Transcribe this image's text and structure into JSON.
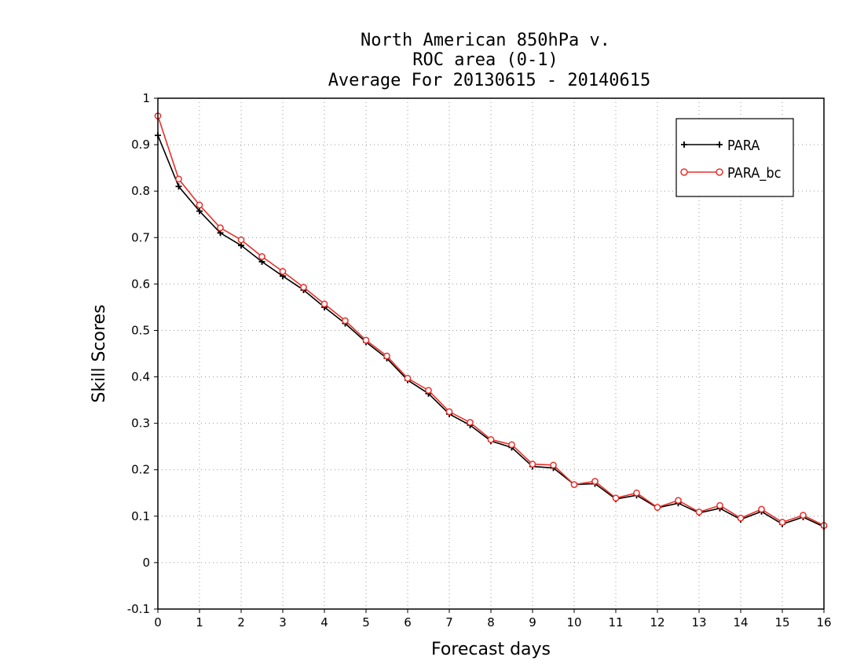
{
  "chart_data": {
    "type": "line",
    "title_lines": [
      "North American 850hPa v.",
      "ROC area (0-1)",
      "Average For 20130615 - 20140615"
    ],
    "xlabel": "Forecast days",
    "ylabel": "Skill Scores",
    "xlim": [
      0,
      16
    ],
    "ylim": [
      -0.1,
      1
    ],
    "x_ticks": [
      0,
      1,
      2,
      3,
      4,
      5,
      6,
      7,
      8,
      9,
      10,
      11,
      12,
      13,
      14,
      15,
      16
    ],
    "y_ticks": [
      -0.1,
      0,
      0.1,
      0.2,
      0.3,
      0.4,
      0.5,
      0.6,
      0.7,
      0.8,
      0.9,
      1
    ],
    "y_tick_labels": [
      "-0.1",
      "0",
      "0.1",
      "0.2",
      "0.3",
      "0.4",
      "0.5",
      "0.6",
      "0.7",
      "0.8",
      "0.9",
      "1"
    ],
    "grid": true,
    "legend_position": "top-right",
    "x": [
      0,
      0.5,
      1,
      1.5,
      2,
      2.5,
      3,
      3.5,
      4,
      4.5,
      5,
      5.5,
      6,
      6.5,
      7,
      7.5,
      8,
      8.5,
      9,
      9.5,
      10,
      10.5,
      11,
      11.5,
      12,
      12.5,
      13,
      13.5,
      14,
      14.5,
      15,
      15.5,
      16
    ],
    "series": [
      {
        "name": "PARA",
        "color": "#000000",
        "marker": "plus",
        "values": [
          0.92,
          0.81,
          0.757,
          0.71,
          0.683,
          0.648,
          0.617,
          0.587,
          0.55,
          0.515,
          0.475,
          0.44,
          0.393,
          0.364,
          0.32,
          0.296,
          0.262,
          0.248,
          0.207,
          0.204,
          0.168,
          0.17,
          0.137,
          0.145,
          0.118,
          0.128,
          0.107,
          0.117,
          0.093,
          0.11,
          0.083,
          0.098,
          0.077
        ]
      },
      {
        "name": "PARA_bc",
        "color": "#e8302a",
        "marker": "circle",
        "values": [
          0.962,
          0.826,
          0.77,
          0.721,
          0.695,
          0.659,
          0.627,
          0.593,
          0.557,
          0.521,
          0.479,
          0.445,
          0.397,
          0.371,
          0.325,
          0.302,
          0.265,
          0.254,
          0.212,
          0.21,
          0.168,
          0.175,
          0.139,
          0.15,
          0.119,
          0.134,
          0.109,
          0.123,
          0.096,
          0.115,
          0.087,
          0.102,
          0.08
        ]
      }
    ]
  }
}
